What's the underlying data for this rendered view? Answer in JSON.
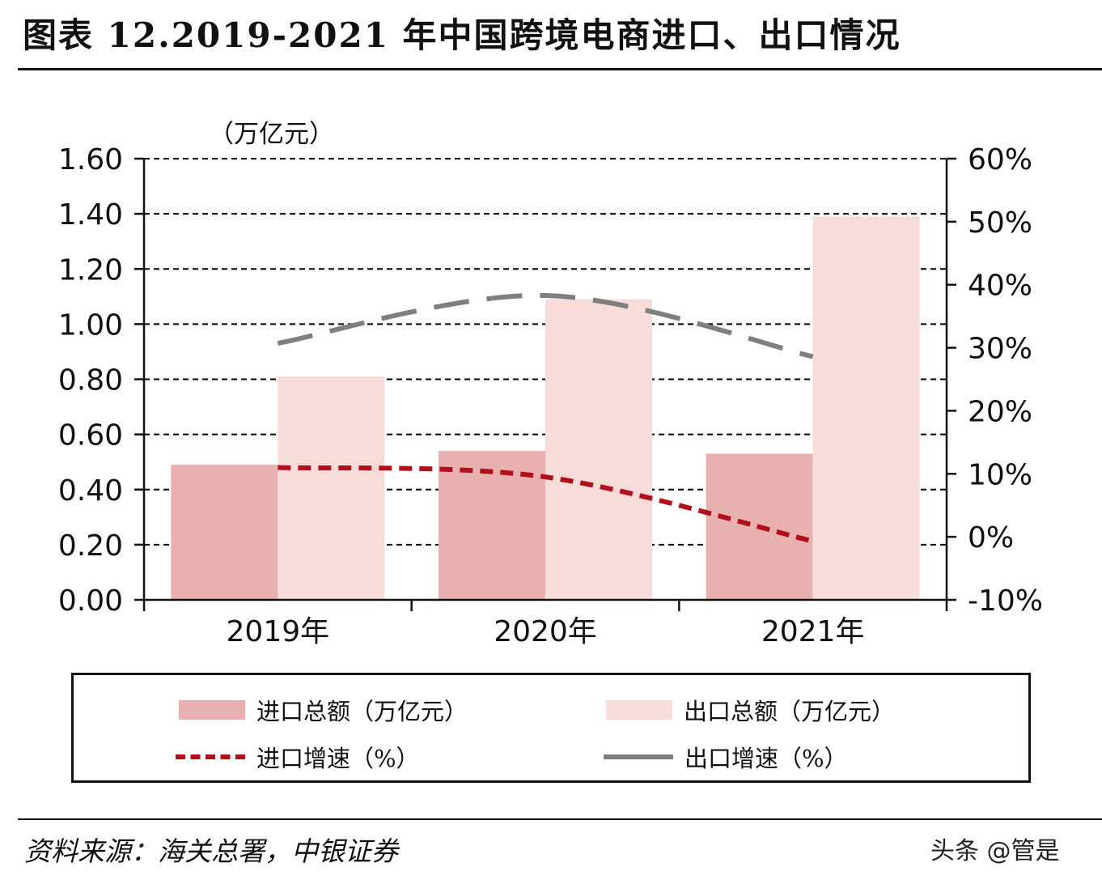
{
  "title": "图表 12.2019-2021 年中国跨境电商进口、出口情况",
  "source": "资料来源：海关总署，中银证券",
  "watermark": "头条 @管是",
  "colors": {
    "import_bar": "#e8b0ae",
    "export_bar": "#f7dcd9",
    "import_line": "#b0101c",
    "export_line": "#7f7f7f",
    "grid": "#000000"
  },
  "chart_data": {
    "type": "bar+line",
    "categories": [
      "2019年",
      "2020年",
      "2021年"
    ],
    "unit_label": "（万亿元）",
    "left_axis": {
      "min": 0,
      "max": 1.6,
      "ticks": [
        "0.00",
        "0.20",
        "0.40",
        "0.60",
        "0.80",
        "1.00",
        "1.20",
        "1.40",
        "1.60"
      ]
    },
    "right_axis": {
      "min": -10,
      "max": 60,
      "ticks": [
        "-10%",
        "0%",
        "10%",
        "20%",
        "30%",
        "40%",
        "50%",
        "60%"
      ]
    },
    "bar_series": [
      {
        "name": "进口总额（万亿元）",
        "values": [
          0.49,
          0.54,
          0.53
        ]
      },
      {
        "name": "出口总额（万亿元）",
        "values": [
          0.81,
          1.09,
          1.39
        ]
      }
    ],
    "line_series": [
      {
        "name": "进口增速（%）",
        "values": [
          11.0,
          9.5,
          -0.7
        ]
      },
      {
        "name": "出口增速（%）",
        "values": [
          30.7,
          38.3,
          28.6
        ]
      }
    ],
    "grid": true,
    "legend_position": "bottom"
  }
}
